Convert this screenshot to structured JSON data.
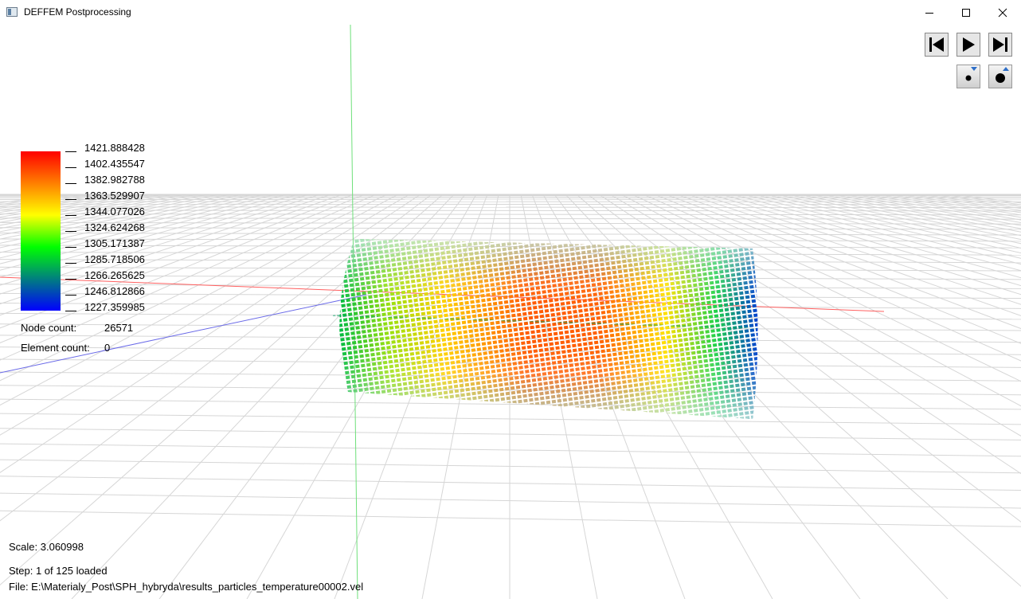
{
  "window": {
    "title": "DEFFEM Postprocessing"
  },
  "icons": {
    "app": "app-window-icon",
    "minimize": "minimize-icon",
    "maximize": "maximize-icon",
    "close": "close-icon",
    "first": "skip-to-start-icon",
    "play": "play-icon",
    "last": "skip-to-end-icon",
    "point_smaller": "point-size-decrease-icon",
    "point_larger": "point-size-increase-icon"
  },
  "legend": {
    "values": [
      "1421.888428",
      "1402.435547",
      "1382.982788",
      "1363.529907",
      "1344.077026",
      "1324.624268",
      "1305.171387",
      "1285.718506",
      "1266.265625",
      "1246.812866",
      "1227.359985"
    ],
    "colors": [
      "#ff0000",
      "#ff7f00",
      "#ffff00",
      "#00ff00",
      "#007f7f",
      "#0000ff"
    ]
  },
  "info": {
    "node_count_label": "Node count:",
    "node_count_value": "26571",
    "element_count_label": "Element count:",
    "element_count_value": "0"
  },
  "status": {
    "scale": "Scale: 3.060998",
    "step": "Step: 1 of 125 loaded",
    "file": "File: E:\\Materialy_Post\\SPH_hybryda\\results_particles_temperature00002.vel"
  }
}
